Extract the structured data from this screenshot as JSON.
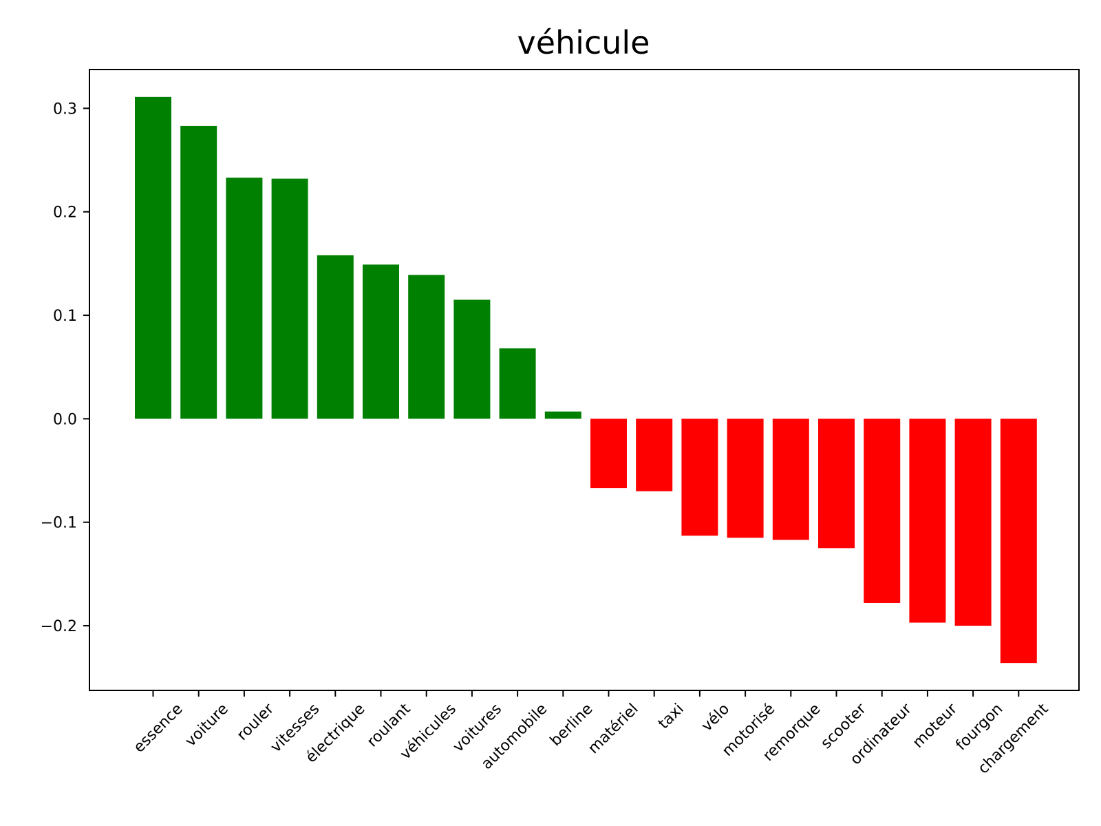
{
  "chart_data": {
    "type": "bar",
    "title": "véhicule",
    "xlabel": "",
    "ylabel": "",
    "categories": [
      "essence",
      "voiture",
      "rouler",
      "vitesses",
      "électrique",
      "roulant",
      "véhicules",
      "voitures",
      "automobile",
      "berline",
      "matériel",
      "taxi",
      "vélo",
      "motorisé",
      "remorque",
      "scooter",
      "ordinateur",
      "moteur",
      "fourgon",
      "chargement"
    ],
    "values": [
      0.311,
      0.283,
      0.233,
      0.232,
      0.158,
      0.149,
      0.139,
      0.115,
      0.068,
      0.007,
      -0.067,
      -0.07,
      -0.113,
      -0.115,
      -0.117,
      -0.125,
      -0.178,
      -0.197,
      -0.2,
      -0.236
    ],
    "ylim": [
      -0.2625,
      0.3375
    ],
    "yticks": [
      -0.2,
      -0.1,
      0.0,
      0.1,
      0.2,
      0.3
    ],
    "ytick_labels": [
      "−0.2",
      "−0.1",
      "0.0",
      "0.1",
      "0.2",
      "0.3"
    ],
    "positive_color": "#008000",
    "negative_color": "#ff0000",
    "grid": false,
    "legend": "none"
  }
}
